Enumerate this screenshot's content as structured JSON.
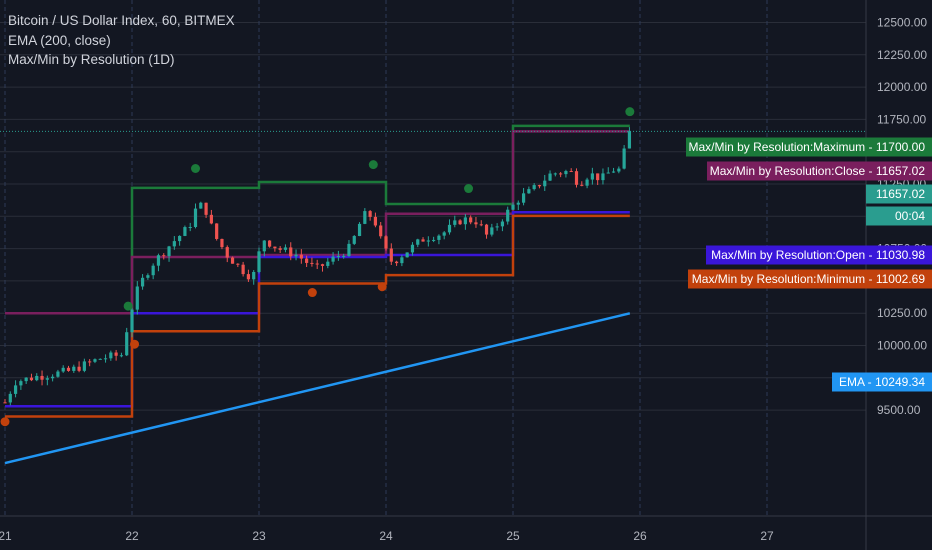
{
  "legend": {
    "title": "Bitcoin / US Dollar Index, 60, BITMEX",
    "ema": "EMA (200, close)",
    "indicator": "Max/Min by Resolution (1D)"
  },
  "colors": {
    "background": "#131722",
    "grid": "#2a2e39",
    "up": "#26a69a",
    "down": "#ef5350",
    "maximum": "#1b7a3a",
    "close": "#7a1f5e",
    "open": "#3a16d9",
    "minimum": "#c2410c",
    "ema": "#2196f3",
    "price_tag": "#2a9d8f",
    "dot_green": "#1b7a3a",
    "dot_orange": "#c2410c"
  },
  "chart_data": {
    "type": "line",
    "x_ticks": [
      "21",
      "22",
      "23",
      "24",
      "25",
      "26",
      "27"
    ],
    "y_ticks": [
      "12500.00",
      "12250.00",
      "12000.00",
      "11750.00",
      "11500.00",
      "11250.00",
      "11000.00",
      "10750.00",
      "10500.00",
      "10250.00",
      "10000.00",
      "9750.00",
      "9500.00"
    ],
    "ylim": [
      9450,
      12600
    ],
    "xlim": [
      21.0,
      27.42
    ],
    "series": [
      {
        "key": "maximum",
        "segments": [
          [
            21.0,
            22.0,
            10250
          ],
          [
            22.0,
            23.0,
            11220
          ],
          [
            23.0,
            24.0,
            11265
          ],
          [
            24.0,
            25.0,
            11095
          ],
          [
            25.0,
            25.92,
            11700
          ]
        ]
      },
      {
        "key": "close",
        "segments": [
          [
            21.0,
            22.0,
            10250
          ],
          [
            22.0,
            23.0,
            10685
          ],
          [
            23.0,
            24.0,
            10700
          ],
          [
            24.0,
            25.0,
            11020
          ],
          [
            25.0,
            25.92,
            11657
          ]
        ]
      },
      {
        "key": "open",
        "segments": [
          [
            21.0,
            22.0,
            9530
          ],
          [
            22.0,
            23.0,
            10250
          ],
          [
            23.0,
            24.0,
            10685
          ],
          [
            24.0,
            25.0,
            10700
          ],
          [
            25.0,
            25.92,
            11031
          ]
        ]
      },
      {
        "key": "minimum",
        "segments": [
          [
            21.0,
            22.0,
            9450
          ],
          [
            22.0,
            23.0,
            10110
          ],
          [
            23.0,
            24.0,
            10480
          ],
          [
            24.0,
            25.0,
            10545
          ],
          [
            25.0,
            25.92,
            11003
          ]
        ]
      }
    ],
    "ema": {
      "x": [
        21.0,
        25.92
      ],
      "y": [
        9090,
        10249.34
      ]
    },
    "current_price": 11657.02,
    "dots": [
      {
        "x": 22.5,
        "y": 11370,
        "color": "green"
      },
      {
        "x": 23.9,
        "y": 11400,
        "color": "green"
      },
      {
        "x": 24.65,
        "y": 11215,
        "color": "green"
      },
      {
        "x": 21.97,
        "y": 10305,
        "color": "green"
      },
      {
        "x": 25.92,
        "y": 11810,
        "color": "green"
      },
      {
        "x": 23.42,
        "y": 10410,
        "color": "orange"
      },
      {
        "x": 23.97,
        "y": 10455,
        "color": "orange"
      },
      {
        "x": 22.02,
        "y": 10010,
        "color": "orange"
      },
      {
        "x": 21.0,
        "y": 9410,
        "color": "orange"
      }
    ],
    "candle_path": [
      [
        21.0,
        9560
      ],
      [
        21.08,
        9720
      ],
      [
        21.25,
        9760
      ],
      [
        21.5,
        9800
      ],
      [
        21.75,
        9900
      ],
      [
        21.93,
        9930
      ],
      [
        21.97,
        10200
      ],
      [
        22.05,
        10450
      ],
      [
        22.15,
        10620
      ],
      [
        22.3,
        10780
      ],
      [
        22.45,
        10920
      ],
      [
        22.52,
        11100
      ],
      [
        22.58,
        11050
      ],
      [
        22.65,
        10850
      ],
      [
        22.75,
        10700
      ],
      [
        22.85,
        10600
      ],
      [
        22.95,
        10520
      ],
      [
        23.03,
        10830
      ],
      [
        23.15,
        10750
      ],
      [
        23.3,
        10700
      ],
      [
        23.45,
        10590
      ],
      [
        23.6,
        10680
      ],
      [
        23.72,
        10760
      ],
      [
        23.82,
        11010
      ],
      [
        23.9,
        11000
      ],
      [
        23.97,
        10780
      ],
      [
        24.05,
        10640
      ],
      [
        24.15,
        10720
      ],
      [
        24.3,
        10830
      ],
      [
        24.45,
        10870
      ],
      [
        24.6,
        10980
      ],
      [
        24.72,
        10960
      ],
      [
        24.8,
        10840
      ],
      [
        24.92,
        10990
      ],
      [
        25.05,
        11140
      ],
      [
        25.15,
        11200
      ],
      [
        25.3,
        11330
      ],
      [
        25.45,
        11350
      ],
      [
        25.52,
        11250
      ],
      [
        25.6,
        11330
      ],
      [
        25.7,
        11290
      ],
      [
        25.78,
        11360
      ],
      [
        25.85,
        11360
      ],
      [
        25.88,
        11520
      ],
      [
        25.92,
        11657
      ]
    ]
  },
  "tags": {
    "maximum": "Max/Min by Resolution:Maximum - 11700.00",
    "close": "Max/Min by Resolution:Close - 11657.02",
    "price": "11657.02",
    "countdown": "00:04",
    "open": "Max/Min by Resolution:Open - 11030.98",
    "minimum": "Max/Min by Resolution:Minimum - 11002.69",
    "ema": "EMA - 10249.34"
  }
}
